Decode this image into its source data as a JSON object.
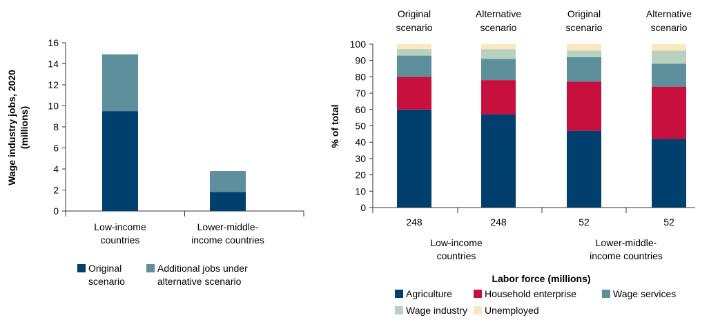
{
  "colors": {
    "navy": "#003f6e",
    "teal": "#5e8f9c",
    "crimson": "#c8103f",
    "sage": "#b9d1bf",
    "cream": "#fbe8c0",
    "axis": "#333333"
  },
  "chart_data": [
    {
      "type": "bar",
      "stacked": true,
      "title": "",
      "xlabel": "",
      "ylabel": "Wage industry jobs, 2020 (millions)",
      "ylabel_lines": [
        "Wage industry jobs, 2020",
        "(millions)"
      ],
      "ylim": [
        0,
        16
      ],
      "yticks": [
        0,
        2,
        4,
        6,
        8,
        10,
        12,
        14,
        16
      ],
      "categories": [
        "Low-income countries",
        "Lower-middle-income countries"
      ],
      "category_lines": [
        [
          "Low-income",
          "countries"
        ],
        [
          "Lower-middle-",
          "income countries"
        ]
      ],
      "series": [
        {
          "name": "Original scenario",
          "legend_lines": [
            "Original",
            "scenario"
          ],
          "color": "#003f6e",
          "values": [
            9.5,
            1.8
          ]
        },
        {
          "name": "Additional jobs under alternative scenario",
          "legend_lines": [
            "Additional jobs under",
            "alternative scenario"
          ],
          "color": "#5e8f9c",
          "values": [
            5.4,
            2.0
          ]
        }
      ],
      "grid": false,
      "legend": "bottom"
    },
    {
      "type": "bar",
      "stacked": true,
      "title": "",
      "xlabel": "Labor force (millions)",
      "ylabel": "% of total",
      "ylim": [
        0,
        100
      ],
      "yticks": [
        0,
        10,
        20,
        30,
        40,
        50,
        60,
        70,
        80,
        90,
        100
      ],
      "bars": [
        {
          "top_lines": [
            "Original",
            "scenario"
          ],
          "value_label": "248"
        },
        {
          "top_lines": [
            "Alternative",
            "scenario"
          ],
          "value_label": "248"
        },
        {
          "top_lines": [
            "Original",
            "scenario"
          ],
          "value_label": "52"
        },
        {
          "top_lines": [
            "Alternative",
            "scenario"
          ],
          "value_label": "52"
        }
      ],
      "groups": [
        {
          "lines": [
            "Low-income",
            "countries"
          ]
        },
        {
          "lines": [
            "Lower-middle-",
            "income countries"
          ]
        }
      ],
      "series": [
        {
          "name": "Agriculture",
          "color": "#003f6e",
          "values": [
            60,
            57,
            47,
            42
          ]
        },
        {
          "name": "Household enterprise",
          "color": "#c8103f",
          "values": [
            20,
            21,
            30,
            32
          ]
        },
        {
          "name": "Wage services",
          "color": "#5e8f9c",
          "values": [
            13,
            13,
            15,
            14
          ]
        },
        {
          "name": "Wage industry",
          "color": "#b9d1bf",
          "values": [
            4,
            6,
            4,
            8
          ]
        },
        {
          "name": "Unemployed",
          "color": "#fbe8c0",
          "values": [
            3,
            3,
            4,
            4
          ]
        }
      ],
      "grid": false,
      "legend": "bottom"
    }
  ]
}
